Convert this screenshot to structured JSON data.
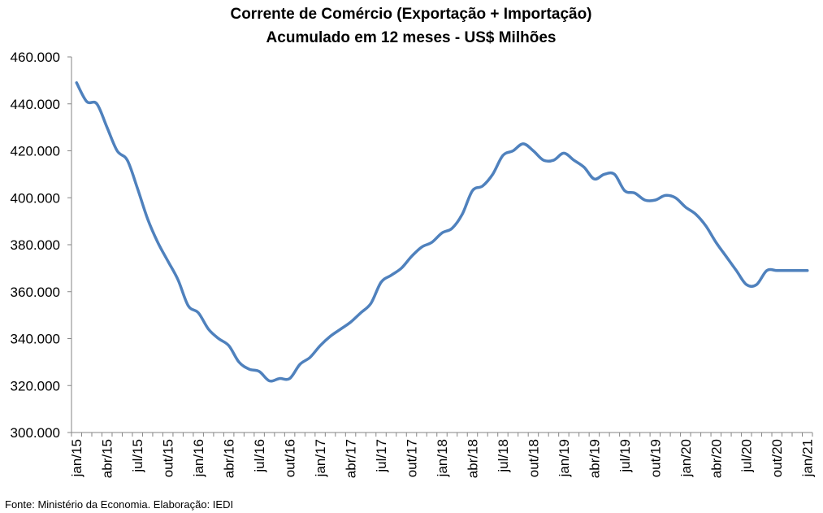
{
  "chart_data": {
    "type": "line",
    "title": "Corrente de Comércio (Exportação + Importação)",
    "subtitle": "Acumulado em 12 meses - US$ Milhões",
    "xlabel": "",
    "ylabel": "",
    "ylim": [
      300000,
      460000
    ],
    "y_ticks": [
      {
        "value": 300000,
        "label": "300.000"
      },
      {
        "value": 320000,
        "label": "320.000"
      },
      {
        "value": 340000,
        "label": "340.000"
      },
      {
        "value": 360000,
        "label": "360.000"
      },
      {
        "value": 380000,
        "label": "380.000"
      },
      {
        "value": 400000,
        "label": "400.000"
      },
      {
        "value": 420000,
        "label": "420.000"
      },
      {
        "value": 440000,
        "label": "440.000"
      },
      {
        "value": 460000,
        "label": "460.000"
      }
    ],
    "x_tick_labels": [
      {
        "index": 0,
        "label": "jan/15"
      },
      {
        "index": 3,
        "label": "abr/15"
      },
      {
        "index": 6,
        "label": "jul/15"
      },
      {
        "index": 9,
        "label": "out/15"
      },
      {
        "index": 12,
        "label": "jan/16"
      },
      {
        "index": 15,
        "label": "abr/16"
      },
      {
        "index": 18,
        "label": "jul/16"
      },
      {
        "index": 21,
        "label": "out/16"
      },
      {
        "index": 24,
        "label": "jan/17"
      },
      {
        "index": 27,
        "label": "abr/17"
      },
      {
        "index": 30,
        "label": "jul/17"
      },
      {
        "index": 33,
        "label": "out/17"
      },
      {
        "index": 36,
        "label": "jan/18"
      },
      {
        "index": 39,
        "label": "abr/18"
      },
      {
        "index": 42,
        "label": "jul/18"
      },
      {
        "index": 45,
        "label": "out/18"
      },
      {
        "index": 48,
        "label": "jan/19"
      },
      {
        "index": 51,
        "label": "abr/19"
      },
      {
        "index": 54,
        "label": "jul/19"
      },
      {
        "index": 57,
        "label": "out/19"
      },
      {
        "index": 60,
        "label": "jan/20"
      },
      {
        "index": 63,
        "label": "abr/20"
      },
      {
        "index": 66,
        "label": "jul/20"
      },
      {
        "index": 69,
        "label": "out/20"
      },
      {
        "index": 72,
        "label": "jan/21"
      }
    ],
    "categories": [
      "jan/15",
      "fev/15",
      "mar/15",
      "abr/15",
      "mai/15",
      "jun/15",
      "jul/15",
      "ago/15",
      "set/15",
      "out/15",
      "nov/15",
      "dez/15",
      "jan/16",
      "fev/16",
      "mar/16",
      "abr/16",
      "mai/16",
      "jun/16",
      "jul/16",
      "ago/16",
      "set/16",
      "out/16",
      "nov/16",
      "dez/16",
      "jan/17",
      "fev/17",
      "mar/17",
      "abr/17",
      "mai/17",
      "jun/17",
      "jul/17",
      "ago/17",
      "set/17",
      "out/17",
      "nov/17",
      "dez/17",
      "jan/18",
      "fev/18",
      "mar/18",
      "abr/18",
      "mai/18",
      "jun/18",
      "jul/18",
      "ago/18",
      "set/18",
      "out/18",
      "nov/18",
      "dez/18",
      "jan/19",
      "fev/19",
      "mar/19",
      "abr/19",
      "mai/19",
      "jun/19",
      "jul/19",
      "ago/19",
      "set/19",
      "out/19",
      "nov/19",
      "dez/19",
      "jan/20",
      "fev/20",
      "mar/20",
      "abr/20",
      "mai/20",
      "jun/20",
      "jul/20",
      "ago/20",
      "set/20",
      "out/20",
      "nov/20",
      "dez/20",
      "jan/21"
    ],
    "series": [
      {
        "color": "#4F81BD",
        "values": [
          449000,
          441000,
          440000,
          430000,
          420000,
          416000,
          404000,
          391000,
          381000,
          373000,
          365000,
          354000,
          351000,
          344000,
          340000,
          337000,
          330000,
          327000,
          326000,
          322000,
          323000,
          323000,
          329000,
          332000,
          337000,
          341000,
          344000,
          347000,
          351000,
          355000,
          364000,
          367000,
          370000,
          375000,
          379000,
          381000,
          385000,
          387000,
          393000,
          403000,
          405000,
          410000,
          418000,
          420000,
          423000,
          420000,
          416000,
          416000,
          419000,
          416000,
          413000,
          408000,
          410000,
          410000,
          403000,
          402000,
          399000,
          399000,
          401000,
          400000,
          396000,
          393000,
          388000,
          381000,
          375000,
          369000,
          363000,
          363000,
          369000,
          369000,
          369000,
          369000,
          369000
        ]
      }
    ],
    "grid": false,
    "legend": "none"
  },
  "source": "Fonte: Ministério da Economia. Elaboração: IEDI"
}
